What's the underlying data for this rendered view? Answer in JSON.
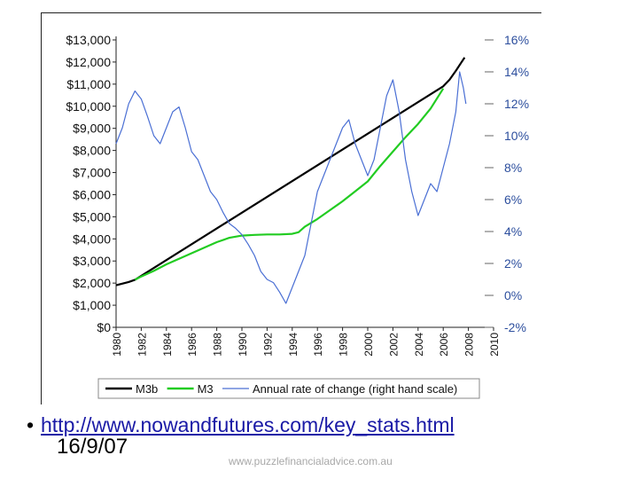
{
  "chart_data": {
    "type": "line",
    "title": "",
    "xlabel": "",
    "ylabel": "",
    "x_ticks": [
      "1980",
      "1982",
      "1984",
      "1986",
      "1988",
      "1990",
      "1992",
      "1994",
      "1996",
      "1998",
      "2000",
      "2002",
      "2004",
      "2006",
      "2008",
      "2010"
    ],
    "x_range": [
      1980,
      2010
    ],
    "y_left_ticks": [
      "$0",
      "$1,000",
      "$2,000",
      "$3,000",
      "$4,000",
      "$5,000",
      "$6,000",
      "$7,000",
      "$8,000",
      "$9,000",
      "$10,000",
      "$11,000",
      "$12,000",
      "$13,000"
    ],
    "y_left_range": [
      0,
      13000
    ],
    "y_right_ticks": [
      "-2%",
      "0%",
      "2%",
      "4%",
      "6%",
      "8%",
      "10%",
      "12%",
      "14%",
      "16%"
    ],
    "y_right_range": [
      -2,
      16
    ],
    "legend_position": "bottom",
    "series": [
      {
        "name": "M3b",
        "axis": "left",
        "color": "#000000",
        "x": [
          1980.0,
          1981.0,
          1981.5,
          2006.0,
          2006.5,
          2007.0,
          2007.4,
          2007.7
        ],
        "y": [
          1900,
          2050,
          2150,
          10900,
          11200,
          11600,
          11950,
          12200
        ]
      },
      {
        "name": "M3",
        "axis": "left",
        "color": "#22cc22",
        "x": [
          1981.5,
          1982,
          1983,
          1984,
          1985,
          1986,
          1987,
          1988,
          1989,
          1990,
          1991,
          1992,
          1993,
          1994,
          1994.5,
          1995,
          1996,
          1997,
          1998,
          1999,
          2000,
          2001,
          2002,
          2003,
          2004,
          2005,
          2006
        ],
        "y": [
          2150,
          2300,
          2550,
          2850,
          3100,
          3350,
          3600,
          3850,
          4050,
          4150,
          4180,
          4200,
          4200,
          4230,
          4300,
          4550,
          4900,
          5300,
          5700,
          6150,
          6600,
          7300,
          7950,
          8600,
          9200,
          9900,
          10800
        ]
      },
      {
        "name": "Annual rate of change (right hand scale)",
        "axis": "right",
        "color": "#4a6fd4",
        "x": [
          1980,
          1980.5,
          1981,
          1981.5,
          1982,
          1982.5,
          1983,
          1983.5,
          1984,
          1984.5,
          1985,
          1985.5,
          1986,
          1986.5,
          1987,
          1987.5,
          1988,
          1988.5,
          1989,
          1989.5,
          1990,
          1990.5,
          1991,
          1991.5,
          1992,
          1992.5,
          1993,
          1993.5,
          1994,
          1994.5,
          1995,
          1995.5,
          1996,
          1996.5,
          1997,
          1997.5,
          1998,
          1998.5,
          1999,
          1999.5,
          2000,
          2000.5,
          2001,
          2001.5,
          2002,
          2002.5,
          2003,
          2003.5,
          2004,
          2004.5,
          2005,
          2005.5,
          2006,
          2006.5,
          2007,
          2007.3,
          2007.6,
          2007.8
        ],
        "y": [
          9.5,
          10.5,
          12.0,
          12.8,
          12.3,
          11.2,
          10.0,
          9.5,
          10.5,
          11.5,
          11.8,
          10.5,
          9.0,
          8.5,
          7.5,
          6.5,
          6.0,
          5.2,
          4.5,
          4.2,
          3.8,
          3.2,
          2.5,
          1.5,
          1.0,
          0.8,
          0.2,
          -0.5,
          0.5,
          1.5,
          2.5,
          4.5,
          6.5,
          7.5,
          8.5,
          9.5,
          10.5,
          11.0,
          9.5,
          8.5,
          7.5,
          8.5,
          10.5,
          12.5,
          13.5,
          11.5,
          8.5,
          6.5,
          5.0,
          6.0,
          7.0,
          6.5,
          8.0,
          9.5,
          11.5,
          14.0,
          13.0,
          12.0
        ]
      }
    ]
  },
  "caption": {
    "link_text": "http://www.nowandfutures.com/key_stats.html",
    "date": "16/9/07"
  },
  "watermark": "www.puzzlefinancialadvice.com.au"
}
